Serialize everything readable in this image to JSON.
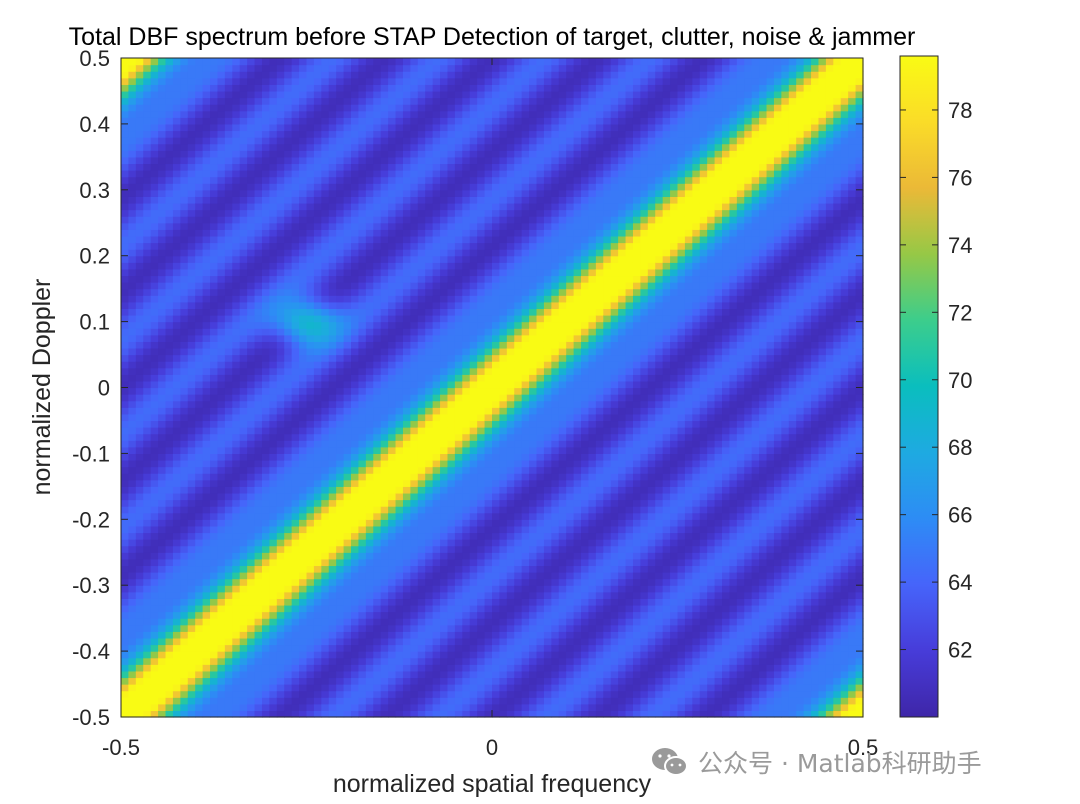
{
  "chart_data": {
    "type": "heatmap",
    "title": "Total DBF spectrum before STAP Detection of target, clutter, noise & jammer",
    "xlabel": "normalized spatial frequency",
    "ylabel": "normalized Doppler",
    "xlim": [
      -0.5,
      0.5
    ],
    "ylim": [
      -0.5,
      0.5
    ],
    "xticks": [
      -0.5,
      0,
      0.5
    ],
    "xtick_labels": [
      "-0.5",
      "0",
      "0.5"
    ],
    "yticks": [
      -0.5,
      -0.4,
      -0.3,
      -0.2,
      -0.1,
      0,
      0.1,
      0.2,
      0.3,
      0.4,
      0.5
    ],
    "ytick_labels": [
      "-0.5",
      "-0.4",
      "-0.3",
      "-0.2",
      "-0.1",
      "0",
      "0.1",
      "0.2",
      "0.3",
      "0.4",
      "0.5"
    ],
    "colorbar": {
      "range": [
        60,
        79.6
      ],
      "ticks": [
        62,
        64,
        66,
        68,
        70,
        72,
        74,
        76,
        78
      ],
      "tick_labels": [
        "62",
        "64",
        "66",
        "68",
        "70",
        "72",
        "74",
        "76",
        "78"
      ]
    },
    "colormap": "parula",
    "grid": false,
    "grid_resolution": 100,
    "features": {
      "clutter_ridge": {
        "description": "diagonal ridge along Doppler = spatial frequency",
        "peak_value": 80,
        "wraps": true
      },
      "target": {
        "spatial_frequency": -0.25,
        "doppler": 0.1,
        "peak_value": 70.3
      },
      "background_level": 62
    }
  },
  "watermark": {
    "text": "公众号 · Matlab科研助手",
    "color": "#9a9a9a"
  }
}
